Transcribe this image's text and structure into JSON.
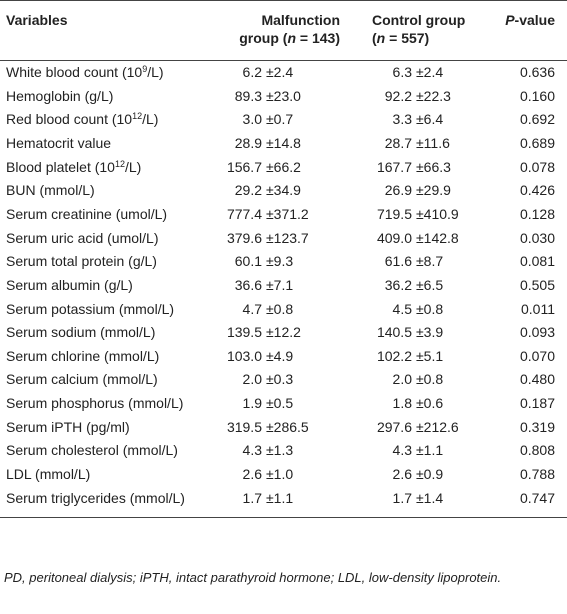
{
  "header": {
    "variables": "Variables",
    "malfunction": {
      "line1": "Malfunction",
      "pre": "group (",
      "italic": "n",
      "post": " = 143)"
    },
    "control": {
      "line1": "Control group",
      "pre": "(",
      "italic": "n",
      "post": " = 557)"
    },
    "pvalue": {
      "italic": "P",
      "post": "-value"
    }
  },
  "rows": [
    {
      "label": {
        "text": "White blood count (10",
        "sup": "9",
        "after": "/L)"
      },
      "malfunction": {
        "mean": "6.2",
        "sd": "±2.4"
      },
      "control": {
        "mean": "6.3",
        "sd": "±2.4"
      },
      "p": "0.636"
    },
    {
      "label": {
        "text": "Hemoglobin (g/L)"
      },
      "malfunction": {
        "mean": "89.3",
        "sd": "±23.0"
      },
      "control": {
        "mean": "92.2",
        "sd": "±22.3"
      },
      "p": "0.160"
    },
    {
      "label": {
        "text": "Red blood count (10",
        "sup": "12",
        "after": "/L)"
      },
      "malfunction": {
        "mean": "3.0",
        "sd": "±0.7"
      },
      "control": {
        "mean": "3.3",
        "sd": "±6.4"
      },
      "p": "0.692"
    },
    {
      "label": {
        "text": "Hematocrit value"
      },
      "malfunction": {
        "mean": "28.9",
        "sd": "±14.8"
      },
      "control": {
        "mean": "28.7",
        "sd": "±11.6"
      },
      "p": "0.689"
    },
    {
      "label": {
        "text": "Blood platelet (10",
        "sup": "12",
        "after": "/L)"
      },
      "malfunction": {
        "mean": "156.7",
        "sd": "±66.2"
      },
      "control": {
        "mean": "167.7",
        "sd": "±66.3"
      },
      "p": "0.078"
    },
    {
      "label": {
        "text": "BUN (mmol/L)"
      },
      "malfunction": {
        "mean": "29.2",
        "sd": "±34.9"
      },
      "control": {
        "mean": "26.9",
        "sd": "±29.9"
      },
      "p": "0.426"
    },
    {
      "label": {
        "text": "Serum creatinine (umol/L)"
      },
      "malfunction": {
        "mean": "777.4",
        "sd": "±371.2"
      },
      "control": {
        "mean": "719.5",
        "sd": "±410.9"
      },
      "p": "0.128"
    },
    {
      "label": {
        "text": "Serum uric acid (umol/L)"
      },
      "malfunction": {
        "mean": "379.6",
        "sd": "±123.7"
      },
      "control": {
        "mean": "409.0",
        "sd": "±142.8"
      },
      "p": "0.030"
    },
    {
      "label": {
        "text": "Serum total protein (g/L)"
      },
      "malfunction": {
        "mean": "60.1",
        "sd": "±9.3"
      },
      "control": {
        "mean": "61.6",
        "sd": "±8.7"
      },
      "p": "0.081"
    },
    {
      "label": {
        "text": "Serum albumin (g/L)"
      },
      "malfunction": {
        "mean": "36.6",
        "sd": "±7.1"
      },
      "control": {
        "mean": "36.2",
        "sd": "±6.5"
      },
      "p": "0.505"
    },
    {
      "label": {
        "text": "Serum potassium (mmol/L)"
      },
      "malfunction": {
        "mean": "4.7",
        "sd": "±0.8"
      },
      "control": {
        "mean": "4.5",
        "sd": "±0.8"
      },
      "p": "0.011"
    },
    {
      "label": {
        "text": "Serum sodium (mmol/L)"
      },
      "malfunction": {
        "mean": "139.5",
        "sd": "±12.2"
      },
      "control": {
        "mean": "140.5",
        "sd": "±3.9"
      },
      "p": "0.093"
    },
    {
      "label": {
        "text": "Serum chlorine (mmol/L)"
      },
      "malfunction": {
        "mean": "103.0",
        "sd": "±4.9"
      },
      "control": {
        "mean": "102.2",
        "sd": "±5.1"
      },
      "p": "0.070"
    },
    {
      "label": {
        "text": "Serum calcium (mmol/L)"
      },
      "malfunction": {
        "mean": "2.0",
        "sd": "±0.3"
      },
      "control": {
        "mean": "2.0",
        "sd": "±0.8"
      },
      "p": "0.480"
    },
    {
      "label": {
        "text": "Serum phosphorus (mmol/L)"
      },
      "malfunction": {
        "mean": "1.9",
        "sd": "±0.5"
      },
      "control": {
        "mean": "1.8",
        "sd": "±0.6"
      },
      "p": "0.187"
    },
    {
      "label": {
        "text": "Serum iPTH (pg/ml)"
      },
      "malfunction": {
        "mean": "319.5",
        "sd": "±286.5"
      },
      "control": {
        "mean": "297.6",
        "sd": "±212.6"
      },
      "p": "0.319"
    },
    {
      "label": {
        "text": "Serum cholesterol (mmol/L)"
      },
      "malfunction": {
        "mean": "4.3",
        "sd": "±1.3"
      },
      "control": {
        "mean": "4.3",
        "sd": "±1.1"
      },
      "p": "0.808"
    },
    {
      "label": {
        "text": "LDL (mmol/L)"
      },
      "malfunction": {
        "mean": "2.6",
        "sd": "±1.0"
      },
      "control": {
        "mean": "2.6",
        "sd": "±0.9"
      },
      "p": "0.788"
    },
    {
      "label": {
        "text": "Serum triglycerides (mmol/L)"
      },
      "malfunction": {
        "mean": "1.7",
        "sd": "±1.1"
      },
      "control": {
        "mean": "1.7",
        "sd": "±1.4"
      },
      "p": "0.747"
    }
  ],
  "footnote": "PD, peritoneal dialysis; iPTH, intact parathyroid hormone; LDL, low-density lipoprotein."
}
